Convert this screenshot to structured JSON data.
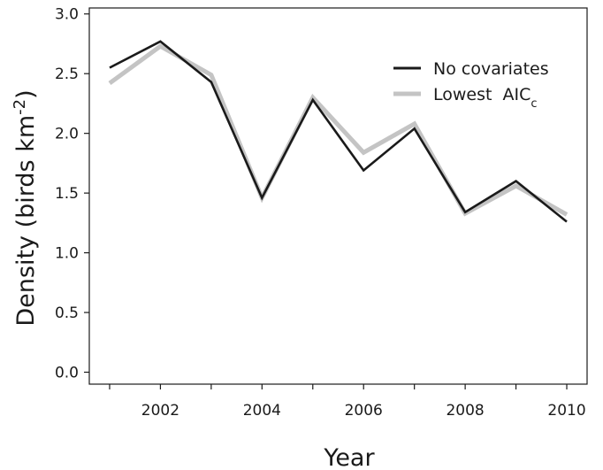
{
  "chart_data": {
    "type": "line",
    "xlabel": "Year",
    "ylabel_main": "Density (birds km",
    "ylabel_sup": "-2",
    "ylabel_end": ")",
    "xlim": [
      2000.6,
      2010.4
    ],
    "ylim": [
      -0.1,
      3.05
    ],
    "x": [
      2001,
      2002,
      2003,
      2004,
      2005,
      2006,
      2007,
      2008,
      2009,
      2010
    ],
    "x_tick_values": [
      2001,
      2002,
      2003,
      2004,
      2005,
      2006,
      2007,
      2008,
      2009,
      2010
    ],
    "x_tick_labels": [
      {
        "value": 2002,
        "label": "2002"
      },
      {
        "value": 2004,
        "label": "2004"
      },
      {
        "value": 2006,
        "label": "2006"
      },
      {
        "value": 2008,
        "label": "2008"
      },
      {
        "value": 2010,
        "label": "2010"
      }
    ],
    "y_ticks": [
      {
        "value": 0.0,
        "label": "0.0"
      },
      {
        "value": 0.5,
        "label": "0.5"
      },
      {
        "value": 1.0,
        "label": "1.0"
      },
      {
        "value": 1.5,
        "label": "1.5"
      },
      {
        "value": 2.0,
        "label": "2.0"
      },
      {
        "value": 2.5,
        "label": "2.5"
      },
      {
        "value": 3.0,
        "label": "3.0"
      }
    ],
    "series": [
      {
        "key": "lowest_aicc",
        "legend_main": "Lowest  AIC",
        "legend_sub": "c",
        "color": "#c4c4c4",
        "values": [
          2.42,
          2.73,
          2.49,
          1.46,
          2.3,
          1.84,
          2.08,
          1.33,
          1.56,
          1.32
        ]
      },
      {
        "key": "no_covariates",
        "legend_main": "No covariates",
        "legend_sub": "",
        "color": "#1a1a1a",
        "values": [
          2.55,
          2.77,
          2.43,
          1.46,
          2.28,
          1.69,
          2.04,
          1.34,
          1.6,
          1.26
        ]
      }
    ],
    "legend_position": "top-right",
    "grid": false
  }
}
